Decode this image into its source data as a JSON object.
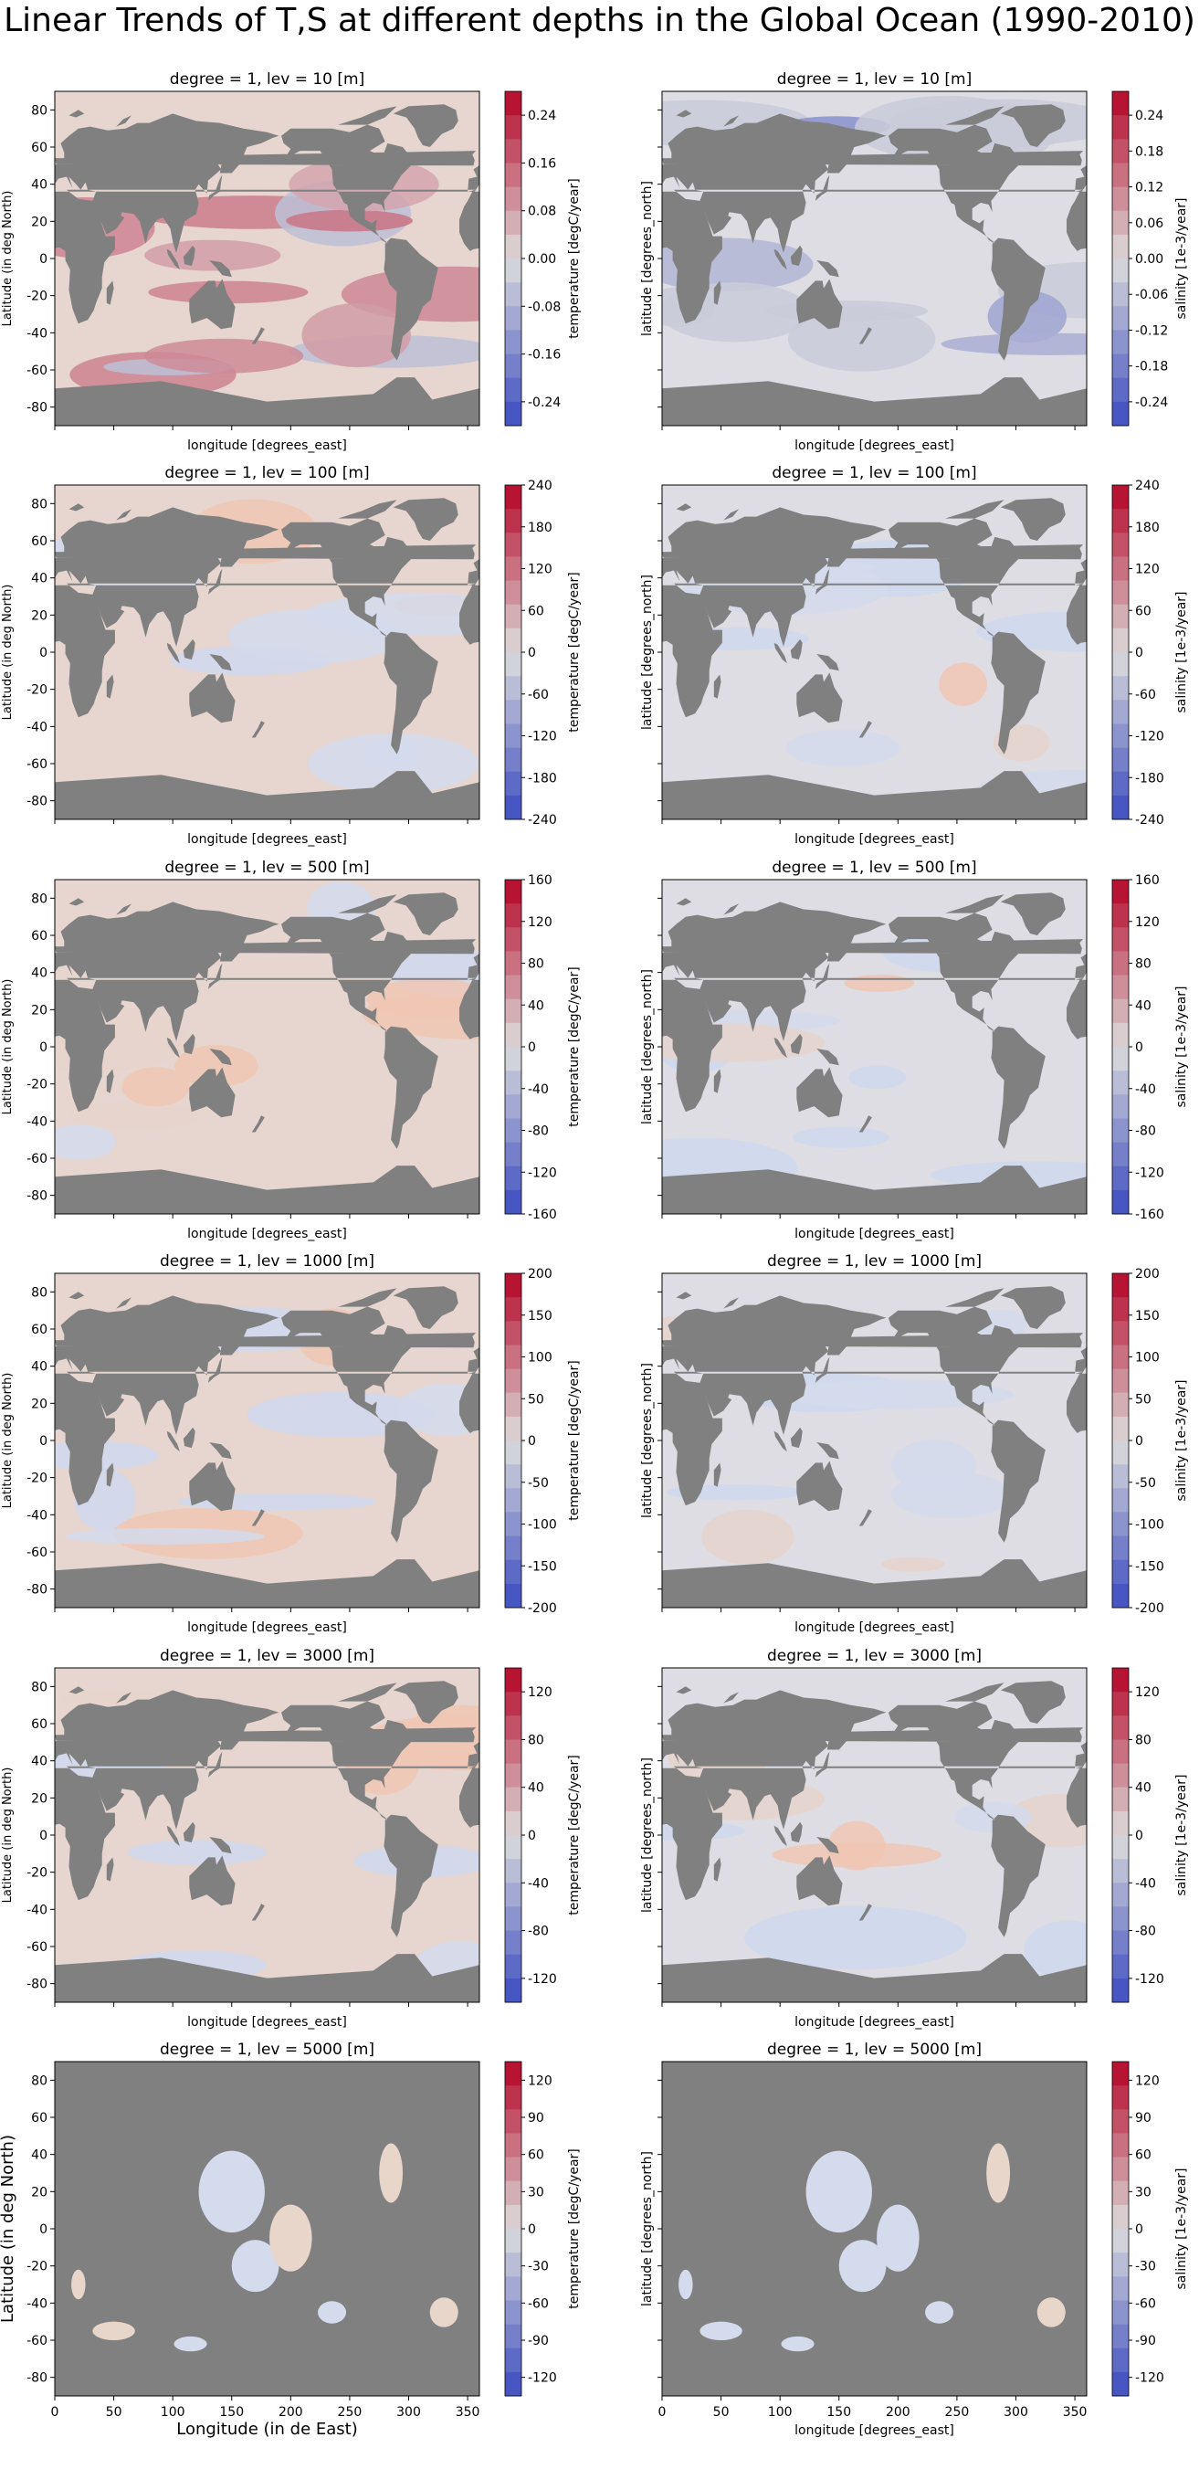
{
  "suptitle": "Linear Trends of T,S at different depths in the Global Ocean (1990-2010)",
  "colors": {
    "land": "#808080",
    "ocean_neutral": "#dbdee6",
    "cmap_min": "#3b4cc0",
    "cmap_mid": "#dddcdc",
    "cmap_max": "#b40426"
  },
  "chart_data": [
    {
      "type": "heatmap",
      "title": "degree = 1, lev = 10 [m]",
      "variable": "temperature",
      "depth": 10,
      "xlabel": "longitude [degrees_east]",
      "ylabel": "Latitude (in deg North)",
      "xlim": [
        0,
        360
      ],
      "ylim": [
        -90,
        90
      ],
      "yticks": [
        "80",
        "60",
        "40",
        "20",
        "0",
        "-20",
        "-40",
        "-60",
        "-80"
      ],
      "xticks": [],
      "colorbar_label": "temperature [degC/year]",
      "colorbar_ticks": [
        "0.24",
        "0.16",
        "0.08",
        "0.00",
        "-0.08",
        "-0.16",
        "-0.24"
      ],
      "colorbar_range": [
        -0.28,
        0.28
      ]
    },
    {
      "type": "heatmap",
      "title": "degree = 1, lev = 10 [m]",
      "variable": "salinity",
      "depth": 10,
      "xlabel": "longitude [degrees_east]",
      "ylabel": "latitude [degrees_north]",
      "xlim": [
        0,
        360
      ],
      "ylim": [
        -90,
        90
      ],
      "yticks": [],
      "xticks": [],
      "colorbar_label": "salinity [1e-3/year]",
      "colorbar_ticks": [
        "0.24",
        "0.18",
        "0.12",
        "0.06",
        "0.00",
        "-0.06",
        "-0.12",
        "-0.18",
        "-0.24"
      ],
      "colorbar_range": [
        -0.28,
        0.28
      ]
    },
    {
      "type": "heatmap",
      "title": "degree = 1, lev = 100 [m]",
      "variable": "temperature",
      "depth": 100,
      "xlabel": "longitude [degrees_east]",
      "ylabel": "Latitude (in deg North)",
      "xlim": [
        0,
        360
      ],
      "ylim": [
        -90,
        90
      ],
      "yticks": [
        "80",
        "60",
        "40",
        "20",
        "0",
        "-20",
        "-40",
        "-60",
        "-80"
      ],
      "xticks": [],
      "colorbar_label": "temperature [degC/year]",
      "colorbar_ticks": [
        "240",
        "180",
        "120",
        "60",
        "0",
        "-60",
        "-120",
        "-180",
        "-240"
      ],
      "colorbar_range": [
        -240,
        240
      ]
    },
    {
      "type": "heatmap",
      "title": "degree = 1, lev = 100 [m]",
      "variable": "salinity",
      "depth": 100,
      "xlabel": "longitude [degrees_east]",
      "ylabel": "latitude [degrees_north]",
      "xlim": [
        0,
        360
      ],
      "ylim": [
        -90,
        90
      ],
      "yticks": [],
      "xticks": [],
      "colorbar_label": "salinity [1e-3/year]",
      "colorbar_ticks": [
        "240",
        "180",
        "120",
        "60",
        "0",
        "-60",
        "-120",
        "-180",
        "-240"
      ],
      "colorbar_range": [
        -240,
        240
      ]
    },
    {
      "type": "heatmap",
      "title": "degree = 1, lev = 500 [m]",
      "variable": "temperature",
      "depth": 500,
      "xlabel": "longitude [degrees_east]",
      "ylabel": "Latitude (in deg North)",
      "xlim": [
        0,
        360
      ],
      "ylim": [
        -90,
        90
      ],
      "yticks": [
        "80",
        "60",
        "40",
        "20",
        "0",
        "-20",
        "-40",
        "-60",
        "-80"
      ],
      "xticks": [],
      "colorbar_label": "temperature [degC/year]",
      "colorbar_ticks": [
        "160",
        "120",
        "80",
        "40",
        "0",
        "-40",
        "-80",
        "-120",
        "-160"
      ],
      "colorbar_range": [
        -160,
        160
      ]
    },
    {
      "type": "heatmap",
      "title": "degree = 1, lev = 500 [m]",
      "variable": "salinity",
      "depth": 500,
      "xlabel": "longitude [degrees_east]",
      "ylabel": "latitude [degrees_north]",
      "xlim": [
        0,
        360
      ],
      "ylim": [
        -90,
        90
      ],
      "yticks": [],
      "xticks": [],
      "colorbar_label": "salinity [1e-3/year]",
      "colorbar_ticks": [
        "160",
        "120",
        "80",
        "40",
        "0",
        "-40",
        "-80",
        "-120",
        "-160"
      ],
      "colorbar_range": [
        -160,
        160
      ]
    },
    {
      "type": "heatmap",
      "title": "degree = 1, lev = 1000 [m]",
      "variable": "temperature",
      "depth": 1000,
      "xlabel": "longitude [degrees_east]",
      "ylabel": "Latitude (in deg North)",
      "xlim": [
        0,
        360
      ],
      "ylim": [
        -90,
        90
      ],
      "yticks": [
        "80",
        "60",
        "40",
        "20",
        "0",
        "-20",
        "-40",
        "-60",
        "-80"
      ],
      "xticks": [],
      "colorbar_label": "temperature [degC/year]",
      "colorbar_ticks": [
        "200",
        "150",
        "100",
        "50",
        "0",
        "-50",
        "-100",
        "-150",
        "-200"
      ],
      "colorbar_range": [
        -200,
        200
      ]
    },
    {
      "type": "heatmap",
      "title": "degree = 1, lev = 1000 [m]",
      "variable": "salinity",
      "depth": 1000,
      "xlabel": "longitude [degrees_east]",
      "ylabel": "latitude [degrees_north]",
      "xlim": [
        0,
        360
      ],
      "ylim": [
        -90,
        90
      ],
      "yticks": [],
      "xticks": [],
      "colorbar_label": "salinity [1e-3/year]",
      "colorbar_ticks": [
        "200",
        "150",
        "100",
        "50",
        "0",
        "-50",
        "-100",
        "-150",
        "-200"
      ],
      "colorbar_range": [
        -200,
        200
      ]
    },
    {
      "type": "heatmap",
      "title": "degree = 1, lev = 3000 [m]",
      "variable": "temperature",
      "depth": 3000,
      "xlabel": "longitude [degrees_east]",
      "ylabel": "Latitude (in deg North)",
      "xlim": [
        0,
        360
      ],
      "ylim": [
        -90,
        90
      ],
      "yticks": [
        "80",
        "60",
        "40",
        "20",
        "0",
        "-20",
        "-40",
        "-60",
        "-80"
      ],
      "xticks": [],
      "colorbar_label": "temperature [degC/year]",
      "colorbar_ticks": [
        "120",
        "80",
        "40",
        "0",
        "-40",
        "-80",
        "-120"
      ],
      "colorbar_range": [
        -140,
        140
      ]
    },
    {
      "type": "heatmap",
      "title": "degree = 1, lev = 3000 [m]",
      "variable": "salinity",
      "depth": 3000,
      "xlabel": "longitude [degrees_east]",
      "ylabel": "latitude [degrees_north]",
      "xlim": [
        0,
        360
      ],
      "ylim": [
        -90,
        90
      ],
      "yticks": [],
      "xticks": [],
      "colorbar_label": "salinity [1e-3/year]",
      "colorbar_ticks": [
        "120",
        "80",
        "40",
        "0",
        "-40",
        "-80",
        "-120"
      ],
      "colorbar_range": [
        -140,
        140
      ]
    },
    {
      "type": "heatmap",
      "title": "degree = 1, lev = 5000 [m]",
      "variable": "temperature",
      "depth": 5000,
      "xlabel": "Longitude (in de East)",
      "ylabel": "Latitude (in deg North)",
      "xlim": [
        0,
        360
      ],
      "ylim": [
        -90,
        90
      ],
      "yticks": [
        "80",
        "60",
        "40",
        "20",
        "0",
        "-20",
        "-40",
        "-60",
        "-80"
      ],
      "xticks": [
        "0",
        "50",
        "100",
        "150",
        "200",
        "250",
        "300",
        "350"
      ],
      "colorbar_label": "temperature [degC/year]",
      "colorbar_ticks": [
        "120",
        "90",
        "60",
        "30",
        "0",
        "-30",
        "-60",
        "-90",
        "-120"
      ],
      "colorbar_range": [
        -135,
        135
      ]
    },
    {
      "type": "heatmap",
      "title": "degree = 1, lev = 5000 [m]",
      "variable": "salinity",
      "depth": 5000,
      "xlabel": "longitude [degrees_east]",
      "ylabel": "latitude [degrees_north]",
      "xlim": [
        0,
        360
      ],
      "ylim": [
        -90,
        90
      ],
      "yticks": [],
      "xticks": [
        "0",
        "50",
        "100",
        "150",
        "200",
        "250",
        "300",
        "350"
      ],
      "colorbar_label": "salinity [1e-3/year]",
      "colorbar_ticks": [
        "120",
        "90",
        "60",
        "30",
        "0",
        "-30",
        "-60",
        "-90",
        "-120"
      ],
      "colorbar_range": [
        -135,
        135
      ]
    }
  ]
}
